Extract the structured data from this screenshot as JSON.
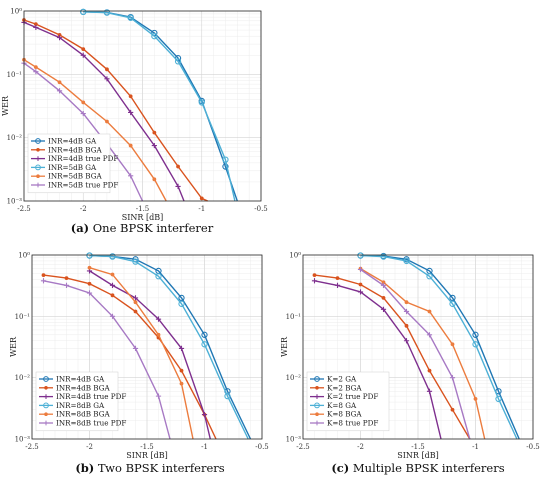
{
  "chart_data": [
    {
      "type": "line",
      "caption_letter": "(a)",
      "caption": "One BPSK interferer",
      "xlabel": "SINR [dB]",
      "ylabel": "WER",
      "xlim": [
        -2.5,
        -0.5
      ],
      "ylim": [
        0.001,
        1
      ],
      "yscale": "log",
      "grid": true,
      "legend_placement": "bottom-left",
      "xticks": [
        -2.5,
        -2,
        -1.5,
        -1,
        -0.5
      ],
      "xtick_labels": [
        "-2.5",
        "-2",
        "-1.5",
        "-1",
        "-0.5"
      ],
      "yticks": [
        0.001,
        0.01,
        0.1,
        1
      ],
      "ytick_labels": [
        "10⁻³",
        "10⁻²",
        "10⁻¹",
        "10⁰"
      ],
      "series": [
        {
          "name": "INR=4dB GA",
          "color": "#1f77b4",
          "marker": "circle",
          "x": [
            -2,
            -1.8,
            -1.6,
            -1.4,
            -1.2,
            -1.0,
            -0.8,
            -0.7
          ],
          "y": [
            0.97,
            0.95,
            0.8,
            0.45,
            0.18,
            0.038,
            0.0035,
            0.001
          ]
        },
        {
          "name": "INR=4dB BGA",
          "color": "#d9531e",
          "marker": "dot",
          "x": [
            -2.5,
            -2.4,
            -2.2,
            -2.0,
            -1.8,
            -1.6,
            -1.4,
            -1.2,
            -1.0,
            -0.95
          ],
          "y": [
            0.72,
            0.62,
            0.42,
            0.25,
            0.12,
            0.045,
            0.012,
            0.0035,
            0.0011,
            0.001
          ]
        },
        {
          "name": "INR=4dB true PDF",
          "color": "#7e2f8e",
          "marker": "plus",
          "x": [
            -2.5,
            -2.4,
            -2.2,
            -2.0,
            -1.8,
            -1.6,
            -1.4,
            -1.2,
            -1.15
          ],
          "y": [
            0.66,
            0.55,
            0.38,
            0.2,
            0.085,
            0.025,
            0.0075,
            0.0017,
            0.001
          ]
        },
        {
          "name": "INR=5dB GA",
          "color": "#4db0d6",
          "marker": "circle",
          "x": [
            -2,
            -1.8,
            -1.6,
            -1.4,
            -1.2,
            -1.0,
            -0.8,
            -0.72
          ],
          "y": [
            0.97,
            0.94,
            0.78,
            0.4,
            0.16,
            0.036,
            0.0045,
            0.001
          ]
        },
        {
          "name": "INR=5dB BGA",
          "color": "#ec7c3e",
          "marker": "dot",
          "x": [
            -2.5,
            -2.4,
            -2.2,
            -2.0,
            -1.8,
            -1.6,
            -1.4,
            -1.3
          ],
          "y": [
            0.17,
            0.13,
            0.075,
            0.036,
            0.018,
            0.0075,
            0.0022,
            0.001
          ]
        },
        {
          "name": "INR=5dB true PDF",
          "color": "#a779c4",
          "marker": "plus",
          "x": [
            -2.5,
            -2.4,
            -2.2,
            -2.0,
            -1.8,
            -1.6,
            -1.5
          ],
          "y": [
            0.15,
            0.11,
            0.055,
            0.024,
            0.008,
            0.0025,
            0.001
          ]
        }
      ]
    },
    {
      "type": "line",
      "caption_letter": "(b)",
      "caption": "Two BPSK interferers",
      "xlabel": "SINR [dB]",
      "ylabel": "WER",
      "xlim": [
        -2.5,
        -0.5
      ],
      "ylim": [
        0.001,
        1
      ],
      "yscale": "log",
      "grid": true,
      "legend_placement": "bottom-left",
      "xticks": [
        -2.5,
        -2,
        -1.5,
        -1,
        -0.5
      ],
      "xtick_labels": [
        "-2.5",
        "-2",
        "-1.5",
        "-1",
        "-0.5"
      ],
      "yticks": [
        0.001,
        0.01,
        0.1,
        1
      ],
      "ytick_labels": [
        "10⁻³",
        "10⁻²",
        "10⁻¹",
        "10⁰"
      ],
      "series": [
        {
          "name": "INR=4dB GA",
          "color": "#1f77b4",
          "marker": "circle",
          "x": [
            -2,
            -1.8,
            -1.6,
            -1.4,
            -1.2,
            -1.0,
            -0.8,
            -0.6
          ],
          "y": [
            0.98,
            0.95,
            0.85,
            0.55,
            0.2,
            0.05,
            0.006,
            0.001
          ]
        },
        {
          "name": "INR=4dB BGA",
          "color": "#d9531e",
          "marker": "dot",
          "x": [
            -2.4,
            -2.2,
            -2.0,
            -1.8,
            -1.6,
            -1.4,
            -1.2,
            -1.0,
            -0.9
          ],
          "y": [
            0.47,
            0.42,
            0.34,
            0.22,
            0.12,
            0.045,
            0.013,
            0.0025,
            0.001
          ]
        },
        {
          "name": "INR=4dB true PDF",
          "color": "#7e2f8e",
          "marker": "plus",
          "x": [
            -2.0,
            -1.8,
            -1.6,
            -1.4,
            -1.2,
            -1.0,
            -0.95
          ],
          "y": [
            0.55,
            0.32,
            0.2,
            0.09,
            0.03,
            0.0025,
            0.001
          ]
        },
        {
          "name": "INR=8dB GA",
          "color": "#4db0d6",
          "marker": "circle",
          "x": [
            -2,
            -1.8,
            -1.6,
            -1.4,
            -1.2,
            -1.0,
            -0.8,
            -0.62
          ],
          "y": [
            0.98,
            0.94,
            0.78,
            0.45,
            0.16,
            0.035,
            0.005,
            0.001
          ]
        },
        {
          "name": "INR=8dB BGA",
          "color": "#ec7c3e",
          "marker": "dot",
          "x": [
            -2.0,
            -1.8,
            -1.6,
            -1.4,
            -1.2,
            -1.1
          ],
          "y": [
            0.62,
            0.48,
            0.17,
            0.05,
            0.008,
            0.001
          ]
        },
        {
          "name": "INR=8dB true PDF",
          "color": "#a779c4",
          "marker": "plus",
          "x": [
            -2.4,
            -2.2,
            -2.0,
            -1.8,
            -1.6,
            -1.4,
            -1.3
          ],
          "y": [
            0.38,
            0.32,
            0.24,
            0.1,
            0.03,
            0.005,
            0.001
          ]
        }
      ]
    },
    {
      "type": "line",
      "caption_letter": "(c)",
      "caption": "Multiple BPSK interferers",
      "xlabel": "SINR [dB]",
      "ylabel": "WER",
      "xlim": [
        -2.5,
        -0.5
      ],
      "ylim": [
        0.001,
        1
      ],
      "yscale": "log",
      "grid": true,
      "legend_placement": "bottom-left",
      "xticks": [
        -2.5,
        -2,
        -1.5,
        -1,
        -0.5
      ],
      "xtick_labels": [
        "-2.5",
        "-2",
        "-1.5",
        "-1",
        "-0.5"
      ],
      "yticks": [
        0.001,
        0.01,
        0.1,
        1
      ],
      "ytick_labels": [
        "10⁻³",
        "10⁻²",
        "10⁻¹",
        "10⁰"
      ],
      "series": [
        {
          "name": "K=2 GA",
          "color": "#1f77b4",
          "marker": "circle",
          "x": [
            -2,
            -1.8,
            -1.6,
            -1.4,
            -1.2,
            -1.0,
            -0.8,
            -0.62
          ],
          "y": [
            0.98,
            0.96,
            0.85,
            0.55,
            0.2,
            0.05,
            0.006,
            0.001
          ]
        },
        {
          "name": "K=2 BGA",
          "color": "#d9531e",
          "marker": "dot",
          "x": [
            -2.4,
            -2.2,
            -2.0,
            -1.8,
            -1.6,
            -1.4,
            -1.2,
            -1.05
          ],
          "y": [
            0.47,
            0.42,
            0.33,
            0.2,
            0.07,
            0.013,
            0.003,
            0.001
          ]
        },
        {
          "name": "K=2 true PDF",
          "color": "#7e2f8e",
          "marker": "plus",
          "x": [
            -2.4,
            -2.2,
            -2.0,
            -1.8,
            -1.6,
            -1.4,
            -1.3
          ],
          "y": [
            0.38,
            0.32,
            0.25,
            0.13,
            0.04,
            0.006,
            0.001
          ]
        },
        {
          "name": "K=8 GA",
          "color": "#4db0d6",
          "marker": "circle",
          "x": [
            -2,
            -1.8,
            -1.6,
            -1.4,
            -1.2,
            -1.0,
            -0.8,
            -0.64
          ],
          "y": [
            0.98,
            0.94,
            0.8,
            0.45,
            0.16,
            0.035,
            0.0045,
            0.001
          ]
        },
        {
          "name": "K=8 BGA",
          "color": "#ec7c3e",
          "marker": "dot",
          "x": [
            -2.0,
            -1.8,
            -1.6,
            -1.4,
            -1.2,
            -1.0,
            -0.92
          ],
          "y": [
            0.6,
            0.36,
            0.17,
            0.12,
            0.035,
            0.0045,
            0.001
          ]
        },
        {
          "name": "K=8 true PDF",
          "color": "#a779c4",
          "marker": "plus",
          "x": [
            -2.0,
            -1.8,
            -1.6,
            -1.4,
            -1.2,
            -1.05
          ],
          "y": [
            0.58,
            0.32,
            0.12,
            0.05,
            0.01,
            0.001
          ]
        }
      ]
    }
  ]
}
